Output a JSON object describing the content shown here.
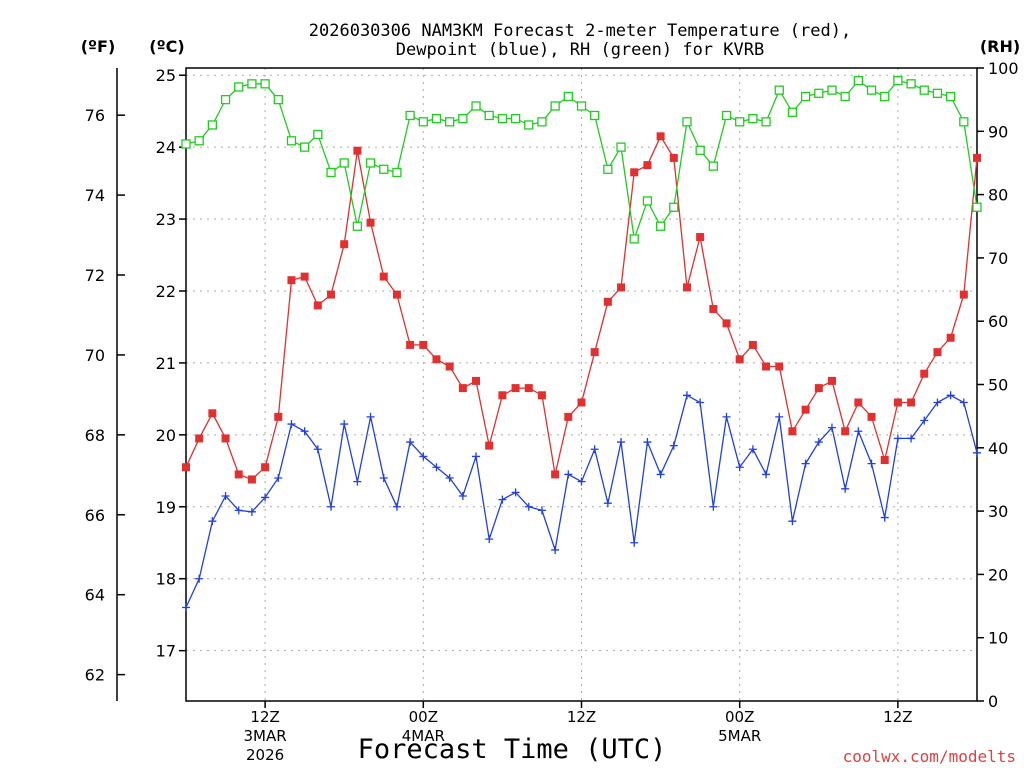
{
  "chart_data": {
    "type": "line",
    "title_line1": "2026030306 NAM3KM Forecast 2-meter Temperature (red),",
    "title_line2": "Dewpoint (blue), RH (green) for KVRB",
    "xlabel": "Forecast Time (UTC)",
    "unit_f": "(ºF)",
    "unit_c": "(ºC)",
    "unit_rh": "(RH)",
    "credit": "coolwx.com/modelts",
    "x_unit": "forecast hour from 2026-03-03 06Z",
    "xlim": [
      0,
      60
    ],
    "ylim_c": [
      16.3,
      25.1
    ],
    "ylim_rh": [
      0,
      100
    ],
    "left_f_ticks": [
      "62",
      "64",
      "66",
      "68",
      "70",
      "72",
      "74",
      "76"
    ],
    "left_c_ticks": [
      "17",
      "18",
      "19",
      "20",
      "21",
      "22",
      "23",
      "24",
      "25"
    ],
    "right_rh_ticks": [
      "0",
      "10",
      "20",
      "30",
      "40",
      "50",
      "60",
      "70",
      "80",
      "90",
      "100"
    ],
    "x_ticks": [
      {
        "hour": 6,
        "label": "12Z",
        "sub1": "3MAR",
        "sub2": "2026"
      },
      {
        "hour": 18,
        "label": "00Z",
        "sub1": "4MAR",
        "sub2": ""
      },
      {
        "hour": 30,
        "label": "12Z",
        "sub1": "",
        "sub2": ""
      },
      {
        "hour": 42,
        "label": "00Z",
        "sub1": "5MAR",
        "sub2": ""
      },
      {
        "hour": 54,
        "label": "12Z",
        "sub1": "",
        "sub2": ""
      }
    ],
    "series": [
      {
        "name": "2-meter Temperature",
        "unit": "C",
        "color": "#e03030",
        "marker": "filled-square",
        "values": [
          19.55,
          19.95,
          20.3,
          19.95,
          19.45,
          19.38,
          19.55,
          20.25,
          22.15,
          22.2,
          21.8,
          21.95,
          22.65,
          23.95,
          22.95,
          22.2,
          21.95,
          21.25,
          21.25,
          21.05,
          20.95,
          20.65,
          20.75,
          19.85,
          20.55,
          20.65,
          20.65,
          20.55,
          19.45,
          20.25,
          20.45,
          21.15,
          21.85,
          22.05,
          23.65,
          23.75,
          24.15,
          23.85,
          22.05,
          22.75,
          21.75,
          21.55,
          21.05,
          21.25,
          20.95,
          20.95,
          20.05,
          20.35,
          20.65,
          20.75,
          20.05,
          20.45,
          20.25,
          19.65,
          20.45,
          20.45,
          20.85,
          21.15,
          21.35,
          21.95,
          23.85
        ]
      },
      {
        "name": "Dewpoint",
        "unit": "C",
        "color": "#2040e0",
        "marker": "plus",
        "values": [
          17.6,
          18.0,
          18.8,
          19.15,
          18.95,
          18.93,
          19.13,
          19.4,
          20.15,
          20.05,
          19.8,
          19.0,
          20.15,
          19.35,
          20.25,
          19.4,
          19.0,
          19.9,
          19.7,
          19.55,
          19.4,
          19.15,
          19.7,
          18.55,
          19.1,
          19.2,
          19.0,
          18.95,
          18.4,
          19.45,
          19.35,
          19.8,
          19.05,
          19.9,
          18.5,
          19.9,
          19.45,
          19.85,
          20.55,
          20.45,
          19.0,
          20.25,
          19.55,
          19.8,
          19.45,
          20.25,
          18.8,
          19.6,
          19.9,
          20.1,
          19.25,
          20.05,
          19.6,
          18.85,
          19.95,
          19.95,
          20.2,
          20.45,
          20.55,
          20.45,
          19.75
        ]
      },
      {
        "name": "RH",
        "unit": "%",
        "color": "#20cc20",
        "marker": "open-square",
        "values": [
          88,
          88.5,
          91,
          95,
          97,
          97.5,
          97.5,
          95,
          88.5,
          87.5,
          89.5,
          83.5,
          85,
          75,
          85,
          84,
          83.5,
          92.5,
          91.5,
          92,
          91.5,
          92,
          94,
          92.5,
          92,
          92,
          91,
          91.5,
          94,
          95.5,
          94,
          92.5,
          84,
          87.5,
          73,
          79,
          75,
          78,
          91.5,
          87,
          84.5,
          92.5,
          91.5,
          92,
          91.5,
          96.5,
          93,
          95.5,
          96,
          96.5,
          95.5,
          98,
          96.5,
          95.5,
          98,
          97.5,
          96.5,
          96,
          95.5,
          91.5,
          78
        ]
      }
    ]
  }
}
